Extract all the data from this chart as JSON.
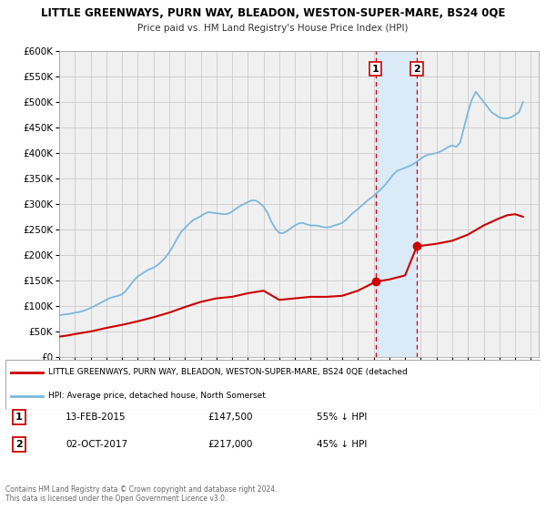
{
  "title": "LITTLE GREENWAYS, PURN WAY, BLEADON, WESTON-SUPER-MARE, BS24 0QE",
  "subtitle": "Price paid vs. HM Land Registry's House Price Index (HPI)",
  "ylim": [
    0,
    600000
  ],
  "yticks": [
    0,
    50000,
    100000,
    150000,
    200000,
    250000,
    300000,
    350000,
    400000,
    450000,
    500000,
    550000,
    600000
  ],
  "xlim_start": 1995.0,
  "xlim_end": 2025.5,
  "hpi_color": "#7ab8e0",
  "price_color": "#cc0000",
  "bg_color": "#f0f0f0",
  "highlight_color": "#daeaf7",
  "grid_color": "#cccccc",
  "legend_label_price": "LITTLE GREENWAYS, PURN WAY, BLEADON, WESTON-SUPER-MARE, BS24 0QE (detached",
  "legend_label_hpi": "HPI: Average price, detached house, North Somerset",
  "transaction1_date": 2015.12,
  "transaction1_price": 147500,
  "transaction2_date": 2017.75,
  "transaction2_price": 217000,
  "table_rows": [
    {
      "label": "1",
      "date": "13-FEB-2015",
      "price": "£147,500",
      "pct": "55% ↓ HPI"
    },
    {
      "label": "2",
      "date": "02-OCT-2017",
      "price": "£217,000",
      "pct": "45% ↓ HPI"
    }
  ],
  "copyright_text": "Contains HM Land Registry data © Crown copyright and database right 2024.\nThis data is licensed under the Open Government Licence v3.0.",
  "hpi_data_x": [
    1995.0,
    1995.25,
    1995.5,
    1995.75,
    1996.0,
    1996.25,
    1996.5,
    1996.75,
    1997.0,
    1997.25,
    1997.5,
    1997.75,
    1998.0,
    1998.25,
    1998.5,
    1998.75,
    1999.0,
    1999.25,
    1999.5,
    1999.75,
    2000.0,
    2000.25,
    2000.5,
    2000.75,
    2001.0,
    2001.25,
    2001.5,
    2001.75,
    2002.0,
    2002.25,
    2002.5,
    2002.75,
    2003.0,
    2003.25,
    2003.5,
    2003.75,
    2004.0,
    2004.25,
    2004.5,
    2004.75,
    2005.0,
    2005.25,
    2005.5,
    2005.75,
    2006.0,
    2006.25,
    2006.5,
    2006.75,
    2007.0,
    2007.25,
    2007.5,
    2007.75,
    2008.0,
    2008.25,
    2008.5,
    2008.75,
    2009.0,
    2009.25,
    2009.5,
    2009.75,
    2010.0,
    2010.25,
    2010.5,
    2010.75,
    2011.0,
    2011.25,
    2011.5,
    2011.75,
    2012.0,
    2012.25,
    2012.5,
    2012.75,
    2013.0,
    2013.25,
    2013.5,
    2013.75,
    2014.0,
    2014.25,
    2014.5,
    2014.75,
    2015.0,
    2015.25,
    2015.5,
    2015.75,
    2016.0,
    2016.25,
    2016.5,
    2016.75,
    2017.0,
    2017.25,
    2017.5,
    2017.75,
    2018.0,
    2018.25,
    2018.5,
    2018.75,
    2019.0,
    2019.25,
    2019.5,
    2019.75,
    2020.0,
    2020.25,
    2020.5,
    2020.75,
    2021.0,
    2021.25,
    2021.5,
    2021.75,
    2022.0,
    2022.25,
    2022.5,
    2022.75,
    2023.0,
    2023.25,
    2023.5,
    2023.75,
    2024.0,
    2024.25,
    2024.5
  ],
  "hpi_data_y": [
    82000,
    83000,
    84000,
    85000,
    87000,
    88000,
    90000,
    93000,
    96000,
    100000,
    104000,
    108000,
    112000,
    116000,
    118000,
    120000,
    123000,
    130000,
    140000,
    150000,
    158000,
    163000,
    168000,
    172000,
    175000,
    180000,
    187000,
    195000,
    205000,
    218000,
    232000,
    245000,
    253000,
    261000,
    268000,
    272000,
    276000,
    281000,
    284000,
    283000,
    282000,
    281000,
    280000,
    281000,
    285000,
    291000,
    296000,
    300000,
    304000,
    307000,
    307000,
    302000,
    295000,
    283000,
    265000,
    252000,
    243000,
    243000,
    247000,
    253000,
    258000,
    262000,
    263000,
    260000,
    258000,
    258000,
    257000,
    255000,
    254000,
    255000,
    258000,
    260000,
    263000,
    269000,
    277000,
    284000,
    290000,
    297000,
    304000,
    310000,
    316000,
    323000,
    330000,
    338000,
    348000,
    358000,
    365000,
    368000,
    371000,
    374000,
    378000,
    383000,
    389000,
    394000,
    397000,
    398000,
    400000,
    403000,
    407000,
    412000,
    415000,
    412000,
    420000,
    450000,
    480000,
    505000,
    520000,
    510000,
    500000,
    490000,
    480000,
    475000,
    470000,
    468000,
    468000,
    470000,
    475000,
    480000,
    500000
  ],
  "price_data_x": [
    1995.0,
    1995.5,
    1996.0,
    1997.0,
    1998.0,
    1999.0,
    2000.0,
    2001.0,
    2002.0,
    2003.0,
    2004.0,
    2005.0,
    2006.0,
    2007.0,
    2008.0,
    2009.0,
    2010.0,
    2011.0,
    2012.0,
    2013.0,
    2014.0,
    2015.12,
    2016.0,
    2017.0,
    2017.75,
    2018.5,
    2019.0,
    2020.0,
    2021.0,
    2022.0,
    2023.0,
    2023.5,
    2024.0,
    2024.5
  ],
  "price_data_y": [
    40000,
    42000,
    45000,
    50000,
    57000,
    63000,
    70000,
    78000,
    87000,
    98000,
    108000,
    115000,
    118000,
    125000,
    130000,
    112000,
    115000,
    118000,
    118000,
    120000,
    130000,
    147500,
    152000,
    160000,
    217000,
    220000,
    222000,
    228000,
    240000,
    258000,
    272000,
    278000,
    280000,
    275000
  ]
}
